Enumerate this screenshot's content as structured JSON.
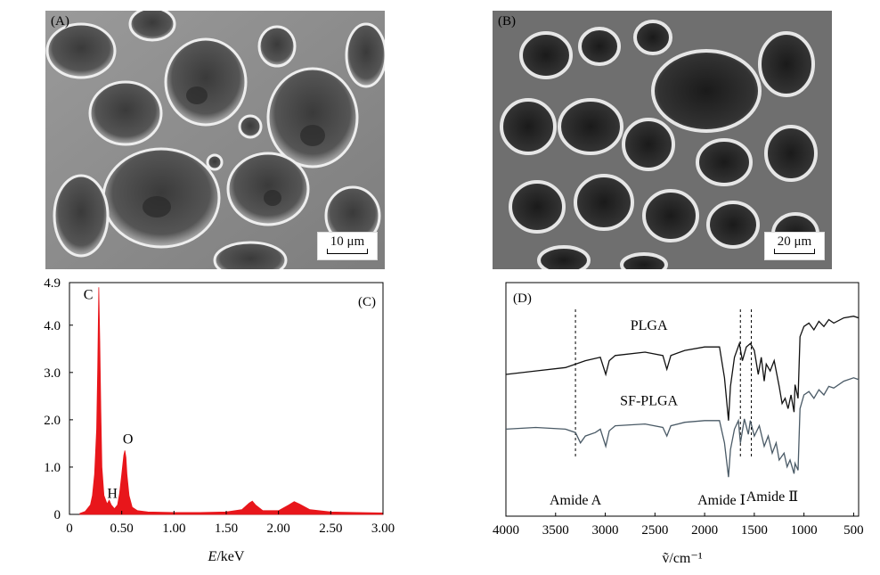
{
  "panels": {
    "a": {
      "label": "(A)",
      "scale_bar": "10 μm"
    },
    "b": {
      "label": "(B)",
      "scale_bar": "20 μm"
    },
    "c": {
      "label": "(C)"
    },
    "d": {
      "label": "(D)"
    }
  },
  "chart_data": [
    {
      "type": "line",
      "panel": "(C)",
      "xlabel_italic": "E",
      "xlabel_rest": "/keV",
      "ylabel": "",
      "xlim": [
        0,
        3.0
      ],
      "ylim": [
        0,
        4.9
      ],
      "x_ticks": [
        "0",
        "0.50",
        "1.00",
        "1.50",
        "2.00",
        "2.50",
        "3.00"
      ],
      "x_tick_values": [
        0,
        0.5,
        1.0,
        1.5,
        2.0,
        2.5,
        3.0
      ],
      "y_ticks": [
        "0",
        "1.0",
        "2.0",
        "3.0",
        "4.0",
        "4.9"
      ],
      "y_tick_values": [
        0,
        1.0,
        2.0,
        3.0,
        4.0,
        4.9
      ],
      "series": [
        {
          "color": "#e8161b",
          "x": [
            0.1,
            0.15,
            0.2,
            0.22,
            0.24,
            0.26,
            0.27,
            0.28,
            0.29,
            0.3,
            0.31,
            0.33,
            0.36,
            0.38,
            0.4,
            0.43,
            0.46,
            0.48,
            0.5,
            0.52,
            0.53,
            0.54,
            0.55,
            0.57,
            0.6,
            0.65,
            0.75,
            1.0,
            1.25,
            1.5,
            1.65,
            1.72,
            1.75,
            1.78,
            1.85,
            2.0,
            2.1,
            2.15,
            2.2,
            2.3,
            2.5,
            2.75,
            3.0
          ],
          "y": [
            0.02,
            0.06,
            0.2,
            0.4,
            0.85,
            1.8,
            3.1,
            4.8,
            3.7,
            2.2,
            1.0,
            0.4,
            0.22,
            0.3,
            0.2,
            0.12,
            0.2,
            0.45,
            0.85,
            1.25,
            1.35,
            1.2,
            0.85,
            0.4,
            0.15,
            0.08,
            0.05,
            0.04,
            0.04,
            0.05,
            0.1,
            0.24,
            0.28,
            0.2,
            0.08,
            0.08,
            0.2,
            0.27,
            0.22,
            0.1,
            0.05,
            0.04,
            0.03
          ]
        }
      ],
      "annotations": [
        {
          "text": "C",
          "x": 0.18,
          "y": 4.55
        },
        {
          "text": "H",
          "x": 0.41,
          "y": 0.35
        },
        {
          "text": "O",
          "x": 0.56,
          "y": 1.5
        }
      ]
    },
    {
      "type": "line",
      "panel": "(D)",
      "xlabel": "ṽ/cm⁻¹",
      "ylabel": "",
      "xlim": [
        4000,
        450
      ],
      "x_ticks": [
        "4000",
        "3500",
        "3000",
        "2500",
        "2000",
        "1500",
        "1000",
        "500"
      ],
      "x_tick_values": [
        4000,
        3500,
        3000,
        2500,
        2000,
        1500,
        1000,
        500
      ],
      "y_ticks": [],
      "series": [
        {
          "name": "PLGA",
          "color": "#111111",
          "x": [
            4000,
            3700,
            3400,
            3200,
            3050,
            2995,
            2960,
            2900,
            2600,
            2420,
            2380,
            2340,
            2200,
            2000,
            1850,
            1800,
            1760,
            1740,
            1700,
            1650,
            1620,
            1580,
            1540,
            1500,
            1460,
            1430,
            1400,
            1380,
            1340,
            1300,
            1250,
            1220,
            1190,
            1160,
            1130,
            1100,
            1090,
            1060,
            1040,
            1000,
            950,
            900,
            850,
            800,
            750,
            700,
            600,
            500,
            450
          ],
          "y": [
            0.62,
            0.64,
            0.66,
            0.7,
            0.72,
            0.62,
            0.7,
            0.73,
            0.75,
            0.73,
            0.65,
            0.73,
            0.76,
            0.78,
            0.78,
            0.6,
            0.35,
            0.55,
            0.72,
            0.8,
            0.7,
            0.78,
            0.8,
            0.76,
            0.62,
            0.72,
            0.58,
            0.68,
            0.64,
            0.7,
            0.55,
            0.45,
            0.48,
            0.42,
            0.5,
            0.4,
            0.56,
            0.48,
            0.84,
            0.9,
            0.92,
            0.88,
            0.93,
            0.9,
            0.94,
            0.92,
            0.95,
            0.96,
            0.95
          ]
        },
        {
          "name": "SF-PLGA",
          "color": "#4a5a66",
          "x": [
            4000,
            3700,
            3400,
            3300,
            3250,
            3200,
            3100,
            3050,
            2995,
            2960,
            2900,
            2600,
            2420,
            2380,
            2340,
            2200,
            2000,
            1850,
            1800,
            1760,
            1740,
            1700,
            1660,
            1640,
            1600,
            1560,
            1540,
            1500,
            1450,
            1400,
            1360,
            1320,
            1280,
            1250,
            1200,
            1170,
            1140,
            1100,
            1090,
            1060,
            1040,
            1000,
            950,
            900,
            850,
            800,
            750,
            700,
            600,
            500,
            450
          ],
          "y": [
            0.3,
            0.31,
            0.3,
            0.28,
            0.22,
            0.26,
            0.28,
            0.3,
            0.2,
            0.29,
            0.32,
            0.33,
            0.31,
            0.26,
            0.32,
            0.34,
            0.35,
            0.35,
            0.22,
            0.02,
            0.18,
            0.3,
            0.35,
            0.22,
            0.36,
            0.27,
            0.35,
            0.26,
            0.32,
            0.2,
            0.26,
            0.16,
            0.22,
            0.12,
            0.16,
            0.08,
            0.12,
            0.04,
            0.1,
            0.06,
            0.42,
            0.5,
            0.52,
            0.48,
            0.53,
            0.5,
            0.55,
            0.54,
            0.58,
            0.6,
            0.59
          ]
        }
      ],
      "labels": [
        {
          "text": "PLGA",
          "x": 2560,
          "y": 0.88
        },
        {
          "text": "SF-PLGA",
          "x": 2560,
          "y": 0.44
        },
        {
          "text": "Amide A",
          "x": 3300,
          "y": -0.14
        },
        {
          "text": "Amide Ⅰ",
          "x": 1830,
          "y": -0.14
        },
        {
          "text": "Amide Ⅱ",
          "x": 1320,
          "y": -0.12
        }
      ],
      "dashed_lines_x": [
        3300,
        1640,
        1530
      ]
    }
  ]
}
